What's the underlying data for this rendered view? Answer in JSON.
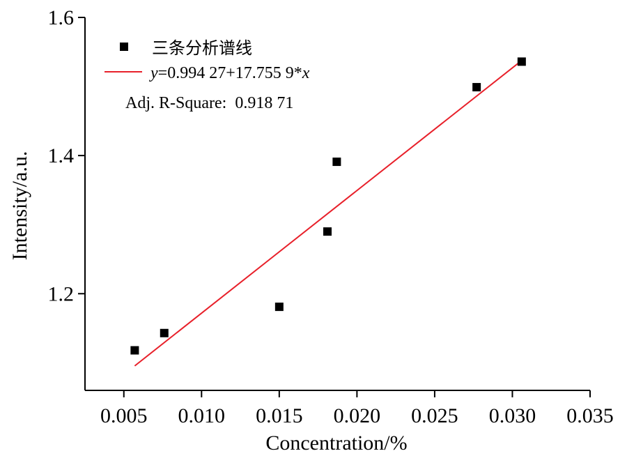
{
  "chart_data": {
    "type": "scatter",
    "xlabel": "Concentration/%",
    "ylabel": "Intensity/a.u.",
    "xlim": [
      0.0025,
      0.035
    ],
    "ylim": [
      1.06,
      1.6
    ],
    "xticks": [
      0.005,
      0.01,
      0.015,
      0.02,
      0.025,
      0.03,
      0.035
    ],
    "xtick_labels": [
      "0.005",
      "0.010",
      "0.015",
      "0.020",
      "0.025",
      "0.030",
      "0.035"
    ],
    "yticks": [
      1.2,
      1.4,
      1.6
    ],
    "ytick_labels": [
      "1.2",
      "1.4",
      "1.6"
    ],
    "series": [
      {
        "name": "三条分析谱线",
        "marker": "square",
        "color": "#000000",
        "points": [
          {
            "x": 0.0057,
            "y": 1.118
          },
          {
            "x": 0.0076,
            "y": 1.143
          },
          {
            "x": 0.015,
            "y": 1.181
          },
          {
            "x": 0.0181,
            "y": 1.29
          },
          {
            "x": 0.0187,
            "y": 1.391
          },
          {
            "x": 0.0277,
            "y": 1.499
          },
          {
            "x": 0.0306,
            "y": 1.536
          }
        ]
      }
    ],
    "fit": {
      "intercept": 0.99427,
      "slope": 17.7559,
      "x_range": [
        0.0057,
        0.0306
      ],
      "color": "#e8202a",
      "legend_var": "y",
      "legend_eq": "=0.994 27+17.755 9*",
      "legend_x": "x"
    },
    "annotation": "Adj. R-Square:  0.918 71",
    "legend_position": "top-left"
  }
}
